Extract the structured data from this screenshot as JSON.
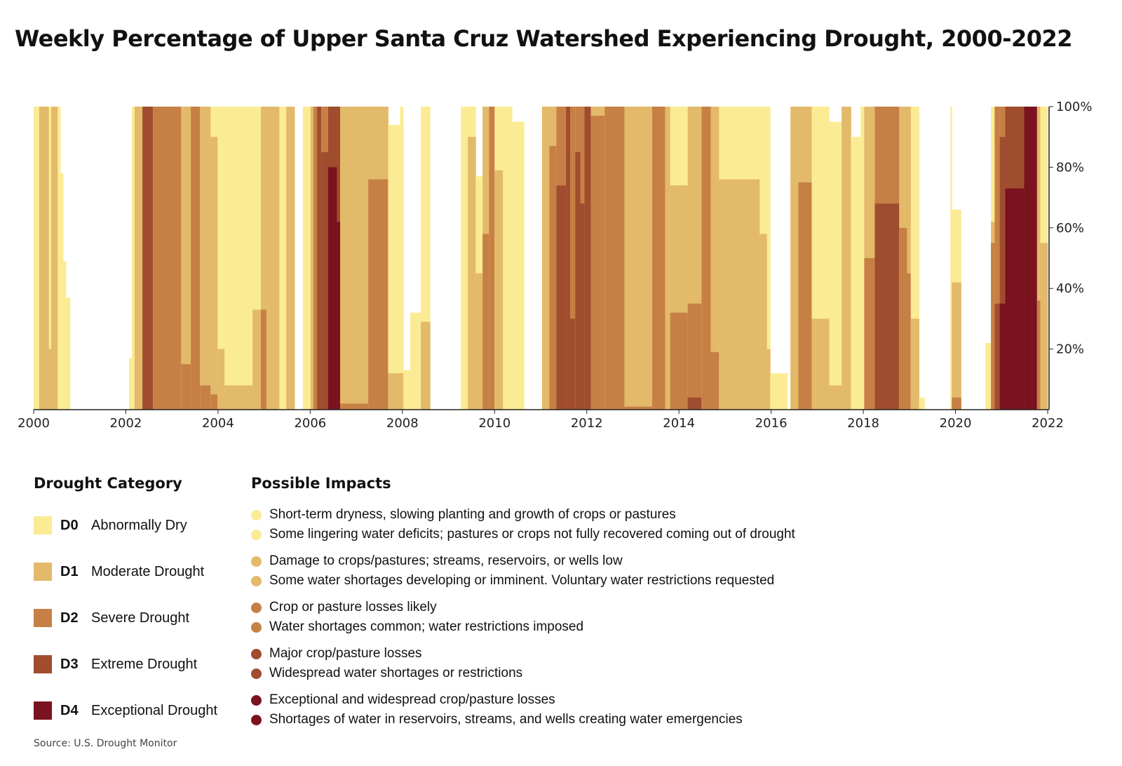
{
  "title": "Weekly Percentage of Upper Santa Cruz Watershed Experiencing Drought, 2000-2022",
  "chart_data": {
    "type": "area",
    "title": "Weekly Percentage of Upper Santa Cruz Watershed Experiencing Drought, 2000-2022",
    "xlabel": "",
    "ylabel": "",
    "xlim": [
      2000,
      2022
    ],
    "ylim": [
      0,
      100
    ],
    "x_ticks": [
      "2000",
      "2002",
      "2004",
      "2006",
      "2008",
      "2010",
      "2012",
      "2014",
      "2016",
      "2018",
      "2020",
      "2022"
    ],
    "y_ticks": [
      "20%",
      "40%",
      "60%",
      "80%",
      "100%"
    ],
    "y_axis_side": "right",
    "grid": false,
    "stacking": "cumulative percent of area at or above each category",
    "series_names": [
      "D0",
      "D1",
      "D2",
      "D3",
      "D4"
    ],
    "segment_fields": [
      "start_year",
      "D0-D4",
      "D1-D4",
      "D2-D4",
      "D3-D4",
      "D4"
    ],
    "end_year": 2022.0,
    "segments": [
      [
        2000.0,
        100,
        0,
        0,
        0,
        0
      ],
      [
        2000.12,
        100,
        100,
        0,
        0,
        0
      ],
      [
        2000.33,
        100,
        20,
        0,
        0,
        0
      ],
      [
        2000.38,
        100,
        100,
        0,
        0,
        0
      ],
      [
        2000.52,
        100,
        0,
        0,
        0,
        0
      ],
      [
        2000.58,
        78,
        0,
        0,
        0,
        0
      ],
      [
        2000.64,
        49,
        0,
        0,
        0,
        0
      ],
      [
        2000.7,
        37,
        0,
        0,
        0,
        0
      ],
      [
        2000.79,
        0,
        0,
        0,
        0,
        0
      ],
      [
        2002.07,
        17,
        0,
        0,
        0,
        0
      ],
      [
        2002.13,
        100,
        0,
        0,
        0,
        0
      ],
      [
        2002.19,
        100,
        100,
        0,
        0,
        0
      ],
      [
        2002.36,
        100,
        100,
        100,
        100,
        0
      ],
      [
        2002.59,
        100,
        100,
        100,
        0,
        0
      ],
      [
        2003.2,
        100,
        100,
        15,
        0,
        0
      ],
      [
        2003.41,
        100,
        100,
        100,
        0,
        0
      ],
      [
        2003.61,
        100,
        100,
        8,
        0,
        0
      ],
      [
        2003.84,
        100,
        90,
        5,
        0,
        0
      ],
      [
        2003.99,
        100,
        20,
        0,
        0,
        0
      ],
      [
        2004.14,
        100,
        8,
        0,
        0,
        0
      ],
      [
        2004.75,
        100,
        33,
        0,
        0,
        0
      ],
      [
        2004.93,
        100,
        100,
        33,
        0,
        0
      ],
      [
        2005.05,
        100,
        100,
        0,
        0,
        0
      ],
      [
        2005.33,
        100,
        0,
        0,
        0,
        0
      ],
      [
        2005.48,
        100,
        100,
        0,
        0,
        0
      ],
      [
        2005.66,
        0,
        0,
        0,
        0,
        0
      ],
      [
        2005.84,
        100,
        0,
        0,
        0,
        0
      ],
      [
        2006.01,
        100,
        100,
        0,
        0,
        0
      ],
      [
        2006.07,
        100,
        100,
        100,
        0,
        0
      ],
      [
        2006.15,
        100,
        100,
        100,
        100,
        0
      ],
      [
        2006.24,
        100,
        100,
        100,
        85,
        0
      ],
      [
        2006.39,
        100,
        100,
        100,
        100,
        80
      ],
      [
        2006.58,
        100,
        100,
        100,
        100,
        62
      ],
      [
        2006.65,
        100,
        100,
        2,
        0,
        0
      ],
      [
        2007.26,
        100,
        100,
        76,
        0,
        0
      ],
      [
        2007.69,
        94,
        12,
        0,
        0,
        0
      ],
      [
        2007.95,
        100,
        12,
        0,
        0,
        0
      ],
      [
        2008.02,
        13,
        0,
        0,
        0,
        0
      ],
      [
        2008.17,
        32,
        0,
        0,
        0,
        0
      ],
      [
        2008.4,
        100,
        29,
        0,
        0,
        0
      ],
      [
        2008.6,
        0,
        0,
        0,
        0,
        0
      ],
      [
        2009.27,
        100,
        0,
        0,
        0,
        0
      ],
      [
        2009.42,
        100,
        90,
        0,
        0,
        0
      ],
      [
        2009.59,
        77,
        45,
        0,
        0,
        0
      ],
      [
        2009.74,
        100,
        100,
        58,
        0,
        0
      ],
      [
        2009.88,
        100,
        100,
        100,
        0,
        0
      ],
      [
        2010.0,
        100,
        79,
        0,
        0,
        0
      ],
      [
        2010.18,
        100,
        0,
        0,
        0,
        0
      ],
      [
        2010.38,
        95,
        0,
        0,
        0,
        0
      ],
      [
        2010.64,
        0,
        0,
        0,
        0,
        0
      ],
      [
        2011.03,
        100,
        100,
        0,
        0,
        0
      ],
      [
        2011.19,
        100,
        100,
        87,
        0,
        0
      ],
      [
        2011.34,
        100,
        100,
        100,
        74,
        0
      ],
      [
        2011.55,
        100,
        100,
        100,
        100,
        0
      ],
      [
        2011.64,
        100,
        100,
        100,
        30,
        0
      ],
      [
        2011.75,
        100,
        100,
        100,
        85,
        0
      ],
      [
        2011.86,
        100,
        100,
        100,
        68,
        0
      ],
      [
        2011.95,
        100,
        100,
        100,
        100,
        0
      ],
      [
        2012.09,
        100,
        100,
        97,
        0,
        0
      ],
      [
        2012.39,
        100,
        100,
        100,
        0,
        0
      ],
      [
        2012.82,
        100,
        100,
        1,
        0,
        0
      ],
      [
        2013.42,
        100,
        100,
        100,
        0,
        0
      ],
      [
        2013.7,
        100,
        100,
        0,
        0,
        0
      ],
      [
        2013.81,
        100,
        74,
        32,
        0,
        0
      ],
      [
        2014.19,
        100,
        100,
        35,
        4,
        0
      ],
      [
        2014.49,
        100,
        100,
        100,
        0,
        0
      ],
      [
        2014.69,
        100,
        100,
        19,
        0,
        0
      ],
      [
        2014.87,
        100,
        76,
        0,
        0,
        0
      ],
      [
        2015.75,
        100,
        58,
        0,
        0,
        0
      ],
      [
        2015.91,
        100,
        20,
        0,
        0,
        0
      ],
      [
        2015.98,
        12,
        0,
        0,
        0,
        0
      ],
      [
        2016.35,
        0,
        0,
        0,
        0,
        0
      ],
      [
        2016.42,
        100,
        100,
        0,
        0,
        0
      ],
      [
        2016.59,
        100,
        100,
        75,
        0,
        0
      ],
      [
        2016.88,
        100,
        30,
        0,
        0,
        0
      ],
      [
        2017.26,
        95,
        8,
        0,
        0,
        0
      ],
      [
        2017.53,
        100,
        100,
        0,
        0,
        0
      ],
      [
        2017.73,
        90,
        0,
        0,
        0,
        0
      ],
      [
        2017.94,
        100,
        0,
        0,
        0,
        0
      ],
      [
        2018.02,
        100,
        100,
        50,
        0,
        0
      ],
      [
        2018.25,
        100,
        100,
        100,
        68,
        0
      ],
      [
        2018.78,
        100,
        100,
        60,
        0,
        0
      ],
      [
        2018.95,
        100,
        100,
        45,
        0,
        0
      ],
      [
        2019.03,
        100,
        30,
        0,
        0,
        0
      ],
      [
        2019.21,
        4,
        0,
        0,
        0,
        0
      ],
      [
        2019.33,
        0,
        0,
        0,
        0,
        0
      ],
      [
        2019.89,
        100,
        0,
        0,
        0,
        0
      ],
      [
        2019.92,
        66,
        42,
        4,
        0,
        0
      ],
      [
        2020.12,
        0,
        0,
        0,
        0,
        0
      ],
      [
        2020.65,
        22,
        0,
        0,
        0,
        0
      ],
      [
        2020.77,
        100,
        62,
        55,
        0,
        0
      ],
      [
        2020.85,
        100,
        100,
        100,
        35,
        0
      ],
      [
        2020.96,
        100,
        100,
        100,
        90,
        35
      ],
      [
        2021.08,
        100,
        100,
        100,
        100,
        73
      ],
      [
        2021.49,
        100,
        100,
        100,
        100,
        100
      ],
      [
        2021.77,
        100,
        100,
        36,
        0,
        0
      ],
      [
        2021.84,
        100,
        55,
        0,
        0,
        0
      ]
    ]
  },
  "colors": {
    "D0": "#fbeb94",
    "D1": "#e3b96a",
    "D2": "#c68045",
    "D3": "#a04c2e",
    "D4": "#7a1220"
  },
  "legend": {
    "title": "Drought Category",
    "items": [
      {
        "code": "D0",
        "label": "Abnormally Dry"
      },
      {
        "code": "D1",
        "label": "Moderate Drought"
      },
      {
        "code": "D2",
        "label": "Severe Drought"
      },
      {
        "code": "D3",
        "label": "Extreme Drought"
      },
      {
        "code": "D4",
        "label": "Exceptional Drought"
      }
    ]
  },
  "impacts": {
    "title": "Possible Impacts",
    "groups": [
      [
        "Short-term dryness, slowing planting and growth of crops or pastures",
        "Some lingering water deficits; pastures or crops not fully recovered coming out of drought"
      ],
      [
        "Damage to crops/pastures; streams, reservoirs, or wells low",
        "Some water shortages developing or imminent. Voluntary water restrictions requested"
      ],
      [
        "Crop or pasture losses likely",
        "Water shortages common; water restrictions imposed"
      ],
      [
        "Major crop/pasture losses",
        "Widespread water shortages or restrictions"
      ],
      [
        "Exceptional and widespread crop/pasture losses",
        "Shortages of water in reservoirs, streams, and wells creating water emergencies"
      ]
    ]
  },
  "source": "Source: U.S. Drought Monitor"
}
